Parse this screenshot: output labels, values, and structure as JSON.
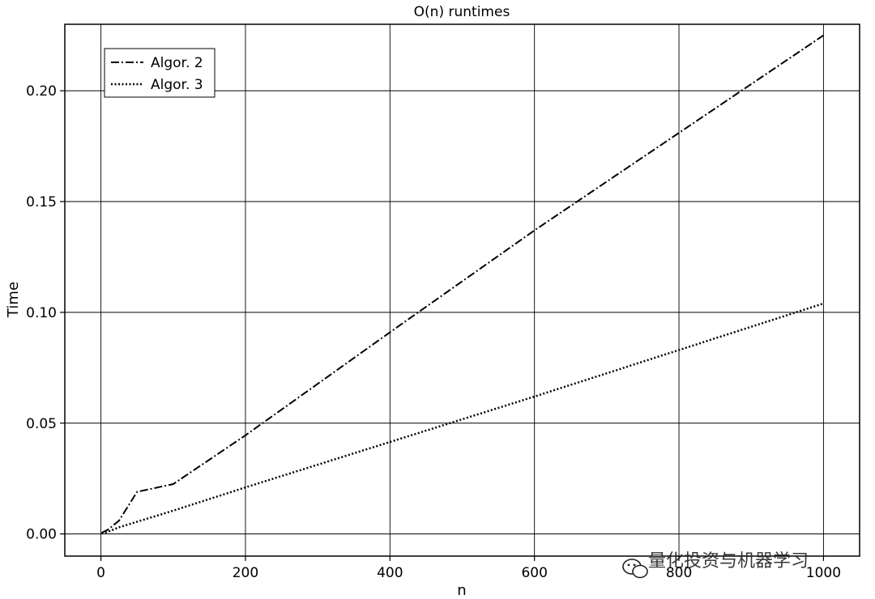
{
  "chart_data": {
    "type": "line",
    "title": "O(n) runtimes",
    "xlabel": "n",
    "ylabel": "Time",
    "xlim": [
      -50,
      1050
    ],
    "ylim": [
      -0.01,
      0.23
    ],
    "xticks": [
      0,
      200,
      400,
      600,
      800,
      1000
    ],
    "xtick_labels": [
      "0",
      "200",
      "400",
      "600",
      "800",
      "1000"
    ],
    "yticks": [
      0.0,
      0.05,
      0.1,
      0.15,
      0.2
    ],
    "ytick_labels": [
      "0.00",
      "0.05",
      "0.10",
      "0.15",
      "0.20"
    ],
    "grid": true,
    "legend_position": "top-left",
    "series": [
      {
        "name": "Algor. 2",
        "style": "dashdot",
        "color": "#000000",
        "x": [
          1,
          10,
          25,
          50,
          100,
          200,
          400,
          600,
          800,
          1000
        ],
        "y": [
          0.0005,
          0.002,
          0.006,
          0.019,
          0.0225,
          0.0445,
          0.091,
          0.137,
          0.181,
          0.225
        ]
      },
      {
        "name": "Algor. 3",
        "style": "dotted",
        "color": "#000000",
        "x": [
          1,
          10,
          25,
          50,
          100,
          200,
          400,
          600,
          800,
          1000
        ],
        "y": [
          0.0002,
          0.001,
          0.003,
          0.0055,
          0.0105,
          0.021,
          0.0415,
          0.062,
          0.083,
          0.104
        ]
      }
    ]
  },
  "watermark": {
    "text": "量化投资与机器学习",
    "icon": "wechat-icon"
  }
}
